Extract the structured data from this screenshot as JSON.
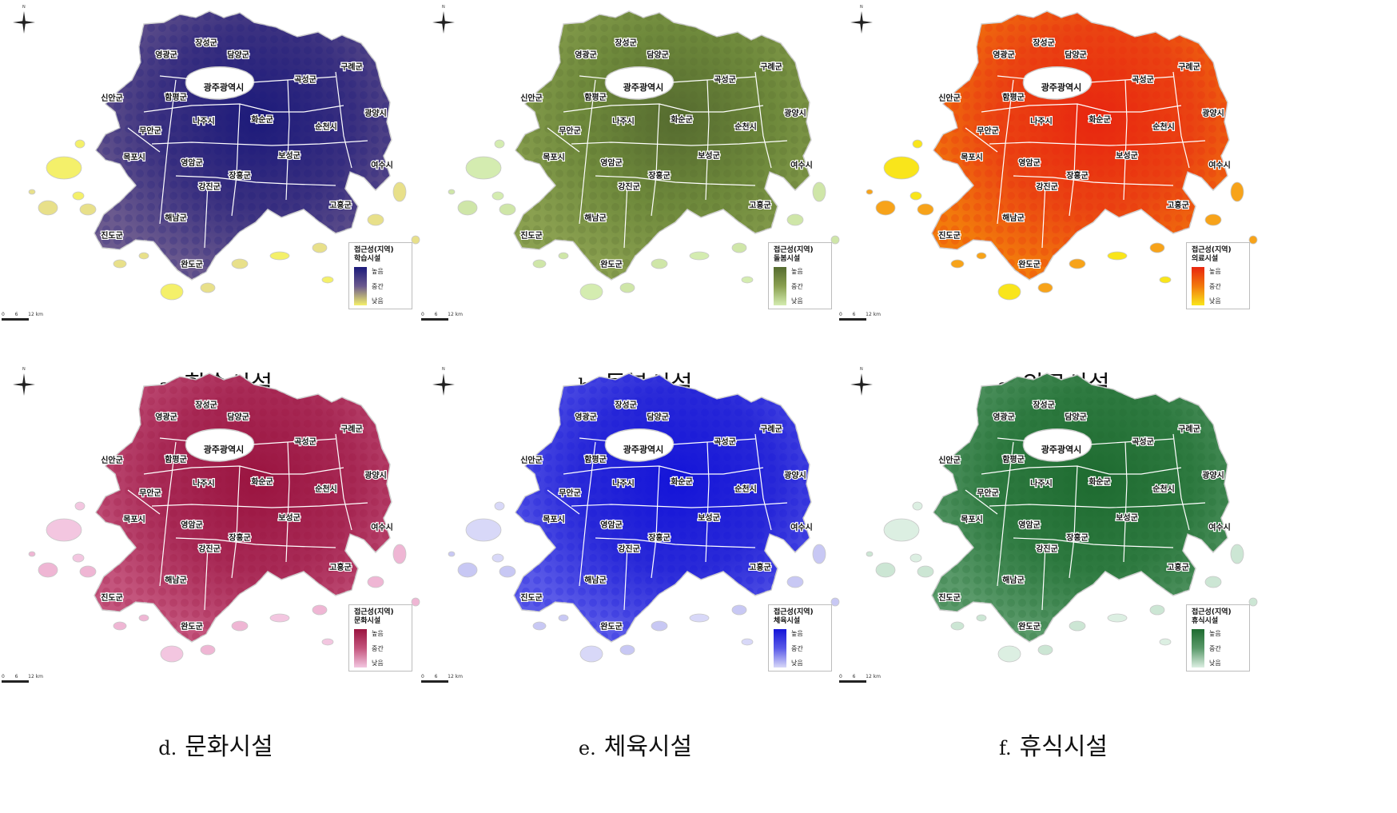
{
  "panels": [
    {
      "letter": "a.",
      "title": "학습시설",
      "legend_title": "접근성(지역)",
      "legend_sub": "학습시설",
      "colors": {
        "high": "#1c1a7a",
        "mid": "#6b5a8e",
        "low": "#f4f06a",
        "base": "#3b3180",
        "light": "#e8e08a"
      }
    },
    {
      "letter": "b.",
      "title": "돌봄시설",
      "legend_title": "접근성(지역)",
      "legend_sub": "돌봄시설",
      "colors": {
        "high": "#556b2f",
        "mid": "#8aa050",
        "low": "#d4ecb0",
        "base": "#6f8a3c",
        "light": "#cfe6a8"
      }
    },
    {
      "letter": "c.",
      "title": "의료시설",
      "legend_title": "접근성(지역)",
      "legend_sub": "의료시설",
      "colors": {
        "high": "#e8260f",
        "mid": "#f27a0c",
        "low": "#f9e51b",
        "base": "#ea4412",
        "light": "#f7a31a"
      }
    },
    {
      "letter": "d.",
      "title": "문화시설",
      "legend_title": "접근성(지역)",
      "legend_sub": "문화시설",
      "colors": {
        "high": "#9a1440",
        "mid": "#c4557d",
        "low": "#f3c6e0",
        "base": "#a82a56",
        "light": "#efb6d4"
      }
    },
    {
      "letter": "e.",
      "title": "체육시설",
      "legend_title": "접근성(지역)",
      "legend_sub": "체육시설",
      "colors": {
        "high": "#1414d8",
        "mid": "#5a5ae8",
        "low": "#d8d8f8",
        "base": "#2a2ad8",
        "light": "#c8c8f4"
      }
    },
    {
      "letter": "f.",
      "title": "휴식시설",
      "legend_title": "접근성(지역)",
      "legend_sub": "휴식시설",
      "colors": {
        "high": "#1e6b30",
        "mid": "#5a9a6a",
        "low": "#dcefe2",
        "base": "#2e7a40",
        "light": "#cce6d4"
      }
    }
  ],
  "legend_levels": {
    "high": "높음",
    "mid": "중간",
    "low": "낮음"
  },
  "region_names": [
    "장성군",
    "담양군",
    "영광군",
    "광주광역시",
    "구례군",
    "곡성군",
    "신안군",
    "함평군",
    "광양시",
    "나주시",
    "화순군",
    "순천시",
    "무안군",
    "목포시",
    "보성군",
    "영암군",
    "여수시",
    "장흥군",
    "강진군",
    "고흥군",
    "해남군",
    "진도군",
    "완도군"
  ],
  "north_label": "N",
  "scale_labels": [
    "0",
    "6",
    "12 km"
  ]
}
